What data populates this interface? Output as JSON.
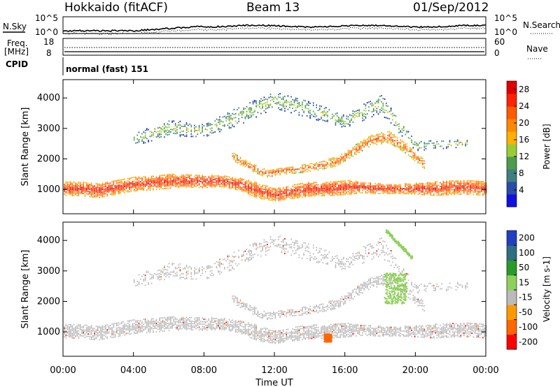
{
  "header": {
    "radar": "Hokkaido (fitACF)",
    "beam": "Beam 13",
    "date": "01/Sep/2012"
  },
  "side_labels": {
    "nsky": "N.Sky",
    "nsearch": "N.Search",
    "freq": "Freq.",
    "freq_unit": "[MHz]",
    "nave": "Nave",
    "cpid": "CPID"
  },
  "noise_axis": {
    "top": "10^5",
    "bottom": "10^0"
  },
  "freq_axis": {
    "top": "18",
    "bottom": "8"
  },
  "nave_axis": {
    "top": "60",
    "bottom": "0"
  },
  "cpid_value": "normal (fast) 151",
  "colors": {
    "power": [
      "#1010e0",
      "#2a4ba8",
      "#3f7f7f",
      "#4f9a4f",
      "#99cc33",
      "#ffb000",
      "#ff8800",
      "#ff5a00",
      "#ff2200",
      "#e00000"
    ],
    "velocity": [
      "#ff0000",
      "#ff6600",
      "#ff9900",
      "#bbbbbb",
      "#8fd05a",
      "#2a9a2a",
      "#2f6f7f",
      "#2040c0"
    ]
  },
  "chart_data": [
    {
      "type": "heatmap",
      "panel": "power",
      "ylabel": "Slant Range [km]",
      "xlabel": "Time UT",
      "x_ticks": [
        "00:00",
        "04:00",
        "08:00",
        "12:00",
        "16:00",
        "20:00",
        "00:00"
      ],
      "y_ticks": [
        "1000",
        "2000",
        "3000",
        "4000"
      ],
      "colorbar": {
        "label": "Power [dB]",
        "ticks": [
          "4",
          "8",
          "12",
          "16",
          "20",
          "24",
          "28"
        ],
        "range": [
          0,
          30
        ]
      },
      "layers": [
        {
          "name": "lower band",
          "t": [
            0,
            1,
            2,
            3,
            4,
            5,
            6,
            7,
            8,
            9,
            10,
            11,
            12,
            13,
            14,
            15,
            16,
            17,
            18,
            19,
            20,
            21,
            22,
            23,
            24
          ],
          "center": [
            1000,
            1000,
            950,
            1050,
            1150,
            1200,
            1250,
            1250,
            1250,
            1250,
            1150,
            950,
            800,
            900,
            1000,
            1000,
            1050,
            1050,
            1000,
            1000,
            1000,
            1000,
            1050,
            1050,
            1000
          ],
          "half_width": [
            220,
            230,
            240,
            230,
            220,
            240,
            230,
            200,
            220,
            180,
            200,
            250,
            200,
            220,
            240,
            230,
            240,
            180,
            160,
            150,
            180,
            220,
            240,
            230,
            220
          ],
          "power": 27
        },
        {
          "name": "upper band",
          "t": [
            9.5,
            10.5,
            11.5,
            12.5,
            13.5,
            14.5,
            15.5,
            16.5,
            17.5,
            18.5,
            19.5,
            20.5
          ],
          "center": [
            2100,
            1750,
            1500,
            1600,
            1650,
            1750,
            1900,
            2250,
            2600,
            2700,
            2300,
            1800
          ],
          "half_width": [
            120,
            130,
            120,
            120,
            120,
            130,
            150,
            160,
            170,
            190,
            160,
            140
          ],
          "power": 24
        },
        {
          "name": "far echoes",
          "t": [
            4,
            6,
            8,
            10,
            12,
            14,
            16,
            18,
            20,
            23
          ],
          "center": [
            2600,
            3000,
            2900,
            3400,
            3900,
            3600,
            3200,
            3800,
            2400,
            2500
          ],
          "half_width": [
            200,
            260,
            200,
            300,
            260,
            280,
            200,
            320,
            150,
            120
          ],
          "power": 14
        }
      ]
    },
    {
      "type": "heatmap",
      "panel": "velocity",
      "ylabel": "Slant Range [km]",
      "xlabel": "Time UT",
      "x_ticks": [
        "00:00",
        "04:00",
        "08:00",
        "12:00",
        "16:00",
        "20:00",
        "00:00"
      ],
      "y_ticks": [
        "1000",
        "2000",
        "3000",
        "4000"
      ],
      "colorbar": {
        "label": "Velocity [m s-1]",
        "ticks": [
          "200",
          "100",
          "50",
          "15",
          "-15",
          "-50",
          "-100",
          "-200"
        ]
      },
      "features": [
        {
          "name": "ground scatter",
          "velocity": 0
        },
        {
          "name": "positive patch",
          "t": [
            18.2,
            19.5
          ],
          "range": [
            1900,
            2900
          ],
          "velocity": 30
        },
        {
          "name": "positive streak",
          "t": [
            18.3,
            19.8
          ],
          "range": [
            3400,
            4300
          ],
          "velocity": 30
        },
        {
          "name": "negative patch",
          "t": [
            14.8,
            15.2
          ],
          "range": [
            650,
            900
          ],
          "velocity": -60
        }
      ]
    }
  ],
  "x_axis_title": "Time UT"
}
